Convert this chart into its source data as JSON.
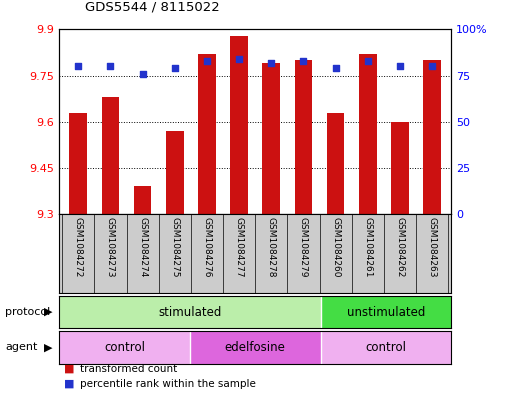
{
  "title": "GDS5544 / 8115022",
  "samples": [
    "GSM1084272",
    "GSM1084273",
    "GSM1084274",
    "GSM1084275",
    "GSM1084276",
    "GSM1084277",
    "GSM1084278",
    "GSM1084279",
    "GSM1084260",
    "GSM1084261",
    "GSM1084262",
    "GSM1084263"
  ],
  "transformed_counts": [
    9.63,
    9.68,
    9.39,
    9.57,
    9.82,
    9.88,
    9.79,
    9.8,
    9.63,
    9.82,
    9.6,
    9.8
  ],
  "percentile_ranks": [
    80,
    80,
    76,
    79,
    83,
    84,
    82,
    83,
    79,
    83,
    80,
    80
  ],
  "y_min": 9.3,
  "y_max": 9.9,
  "y_ticks": [
    9.3,
    9.45,
    9.6,
    9.75,
    9.9
  ],
  "y_tick_labels": [
    "9.3",
    "9.45",
    "9.6",
    "9.75",
    "9.9"
  ],
  "y2_ticks": [
    0,
    25,
    50,
    75,
    100
  ],
  "y2_tick_labels": [
    "0",
    "25",
    "50",
    "75",
    "100%"
  ],
  "bar_color": "#cc1111",
  "dot_color": "#2233cc",
  "protocol_labels": [
    {
      "label": "stimulated",
      "start": 0,
      "end": 8,
      "color": "#bbeeaa"
    },
    {
      "label": "unstimulated",
      "start": 8,
      "end": 12,
      "color": "#44dd44"
    }
  ],
  "agent_labels": [
    {
      "label": "control",
      "start": 0,
      "end": 4,
      "color": "#f0b0f0"
    },
    {
      "label": "edelfosine",
      "start": 4,
      "end": 8,
      "color": "#dd66dd"
    },
    {
      "label": "control",
      "start": 8,
      "end": 12,
      "color": "#f0b0f0"
    }
  ],
  "legend_items": [
    {
      "label": "transformed count",
      "color": "#cc1111"
    },
    {
      "label": "percentile rank within the sample",
      "color": "#2233cc"
    }
  ],
  "tick_bg_color": "#cccccc",
  "fig_bg_color": "#ffffff"
}
